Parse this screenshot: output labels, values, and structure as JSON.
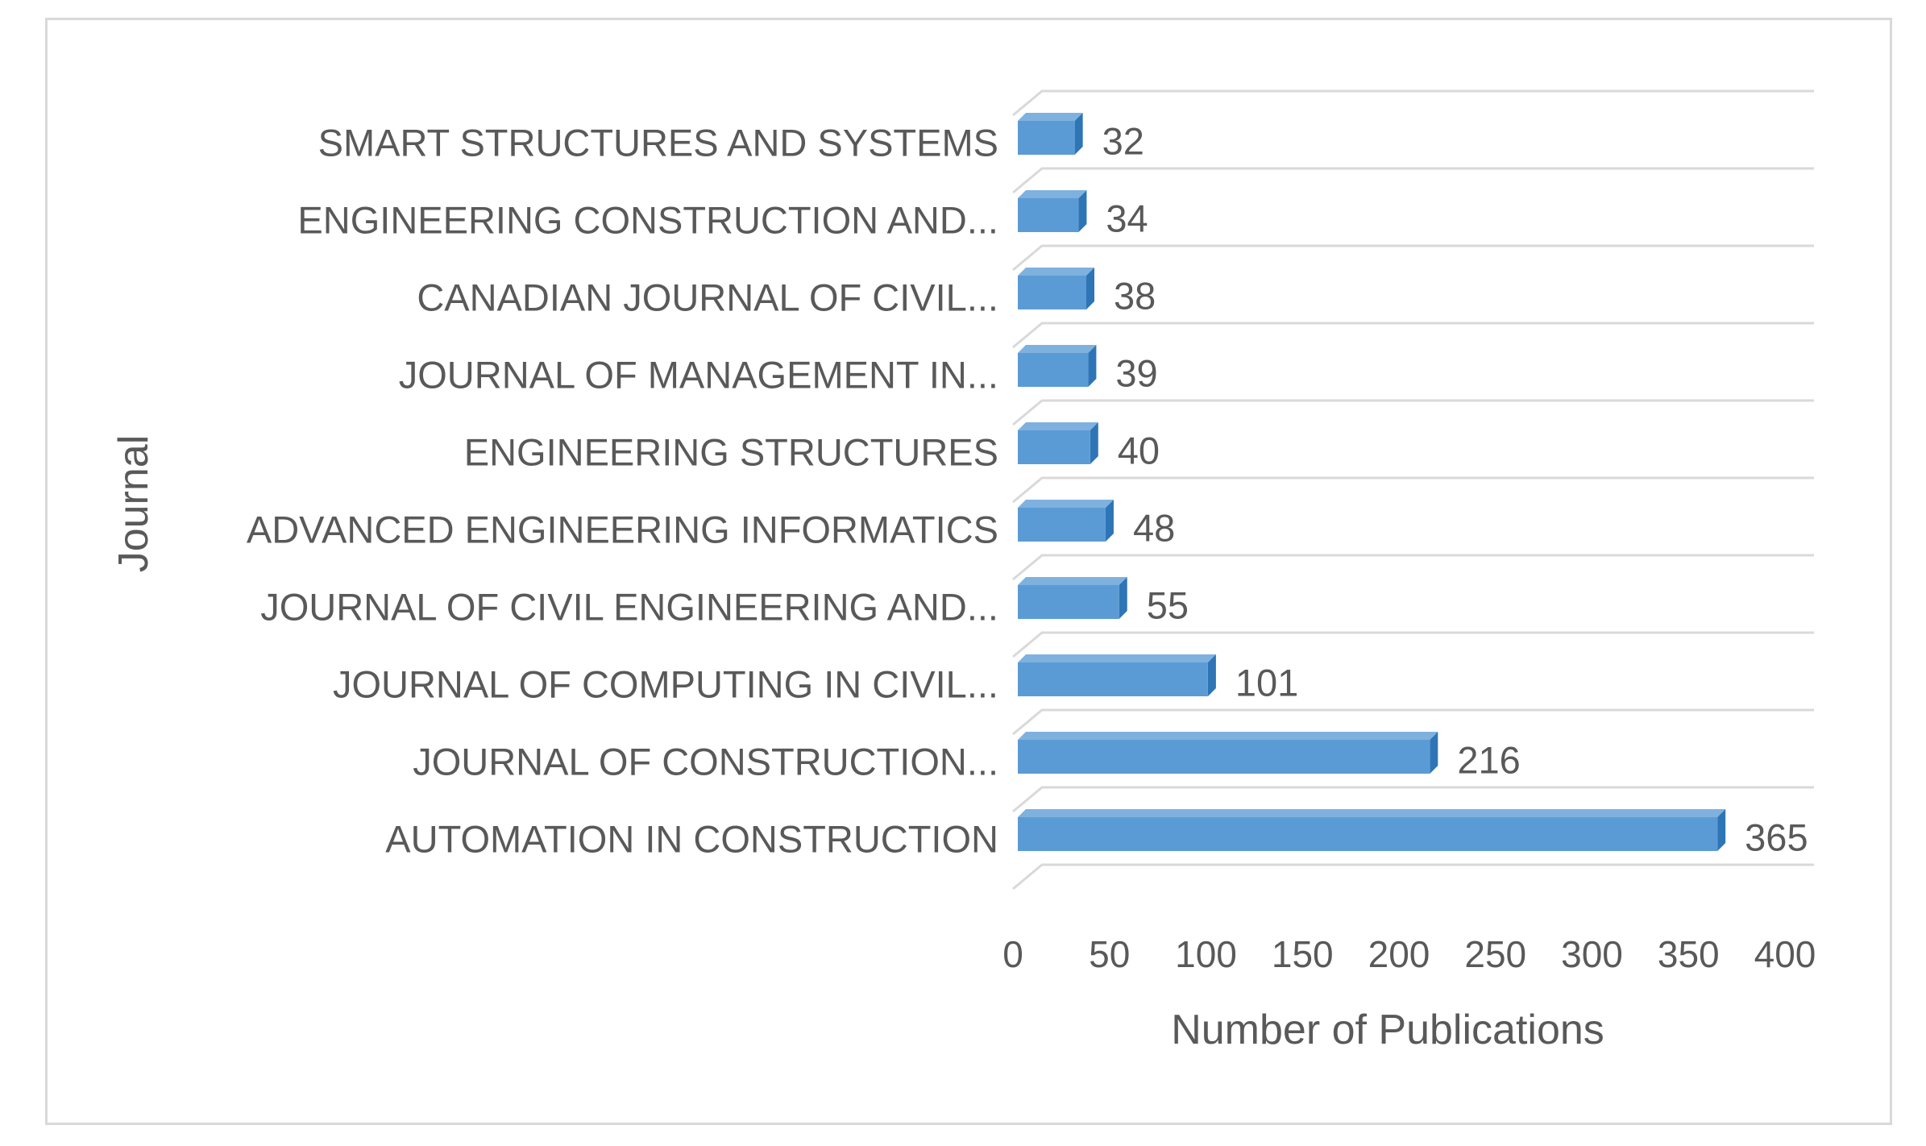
{
  "chart_data": {
    "type": "bar",
    "orientation": "horizontal",
    "style": "3d-clustered-bar",
    "categories": [
      "AUTOMATION IN CONSTRUCTION",
      "JOURNAL OF CONSTRUCTION...",
      "JOURNAL OF COMPUTING IN CIVIL...",
      "JOURNAL OF CIVIL ENGINEERING AND...",
      "ADVANCED ENGINEERING INFORMATICS",
      "ENGINEERING STRUCTURES",
      "JOURNAL OF MANAGEMENT IN...",
      "CANADIAN JOURNAL OF CIVIL...",
      "ENGINEERING CONSTRUCTION AND...",
      "SMART STRUCTURES AND SYSTEMS"
    ],
    "values": [
      365,
      216,
      101,
      55,
      48,
      40,
      39,
      38,
      34,
      32
    ],
    "data_labels": [
      "365",
      "216",
      "101",
      "55",
      "48",
      "40",
      "39",
      "38",
      "34",
      "32"
    ],
    "title": "",
    "xlabel": "Number of Publications",
    "ylabel": "Journal",
    "xlim": [
      0,
      400
    ],
    "xticks": [
      0,
      50,
      100,
      150,
      200,
      250,
      300,
      350,
      400
    ],
    "xtick_labels": [
      "0",
      "50",
      "100",
      "150",
      "200",
      "250",
      "300",
      "350",
      "400"
    ],
    "grid": true,
    "legend": "none",
    "colors": {
      "bar_front": "#5b9bd5",
      "bar_top": "#7fb1df",
      "bar_side": "#2e75b6",
      "gridline": "#d9d9d9",
      "text": "#595959"
    }
  }
}
